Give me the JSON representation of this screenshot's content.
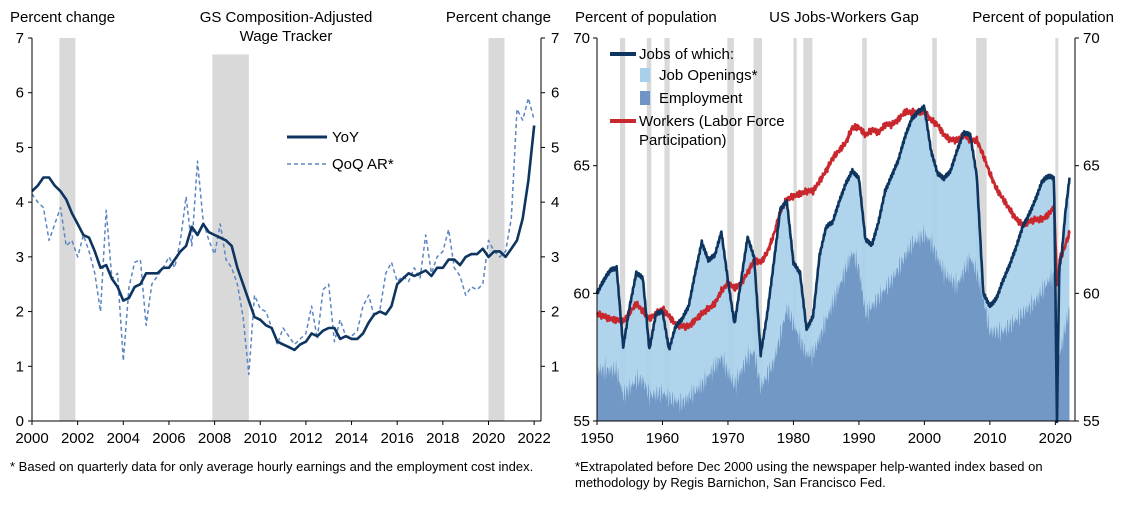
{
  "colors": {
    "navy": "#0d3560",
    "dashed": "#5b86c2",
    "light_blue": "#a8d0ea",
    "mid_blue": "#6f95c4",
    "red": "#c8272d",
    "recession": "#d9d9d9"
  },
  "chart_data": [
    {
      "type": "line",
      "title": "GS Composition-Adjusted Wage Tracker",
      "title_lines": [
        "GS Composition-Adjusted",
        "Wage Tracker"
      ],
      "ylabel_left": "Percent change",
      "ylabel_right": "Percent change",
      "xlim": [
        2000,
        2022.3
      ],
      "ylim": [
        0,
        7
      ],
      "x_ticks": [
        "2000",
        "2002",
        "2004",
        "2006",
        "2008",
        "2010",
        "2012",
        "2014",
        "2016",
        "2018",
        "2020",
        "2022"
      ],
      "y_ticks": [
        "0",
        "1",
        "2",
        "3",
        "4",
        "5",
        "6",
        "7"
      ],
      "y_ticks_right": [
        "1",
        "2",
        "3",
        "4",
        "5",
        "6",
        "7"
      ],
      "recessions": [
        [
          2001.2,
          2001.9
        ],
        [
          2007.9,
          2009.5
        ],
        [
          2020.0,
          2020.7
        ]
      ],
      "legend": [
        "YoY",
        "QoQ AR*"
      ],
      "series": [
        {
          "name": "YoY",
          "style": "solid",
          "x": [
            2000.0,
            2000.25,
            2000.5,
            2000.75,
            2001.0,
            2001.25,
            2001.5,
            2001.75,
            2002.0,
            2002.25,
            2002.5,
            2002.75,
            2003.0,
            2003.25,
            2003.5,
            2003.75,
            2004.0,
            2004.25,
            2004.5,
            2004.75,
            2005.0,
            2005.25,
            2005.5,
            2005.75,
            2006.0,
            2006.25,
            2006.5,
            2006.75,
            2007.0,
            2007.25,
            2007.5,
            2007.75,
            2008.0,
            2008.25,
            2008.5,
            2008.75,
            2009.0,
            2009.25,
            2009.5,
            2009.75,
            2010.0,
            2010.25,
            2010.5,
            2010.75,
            2011.0,
            2011.25,
            2011.5,
            2011.75,
            2012.0,
            2012.25,
            2012.5,
            2012.75,
            2013.0,
            2013.25,
            2013.5,
            2013.75,
            2014.0,
            2014.25,
            2014.5,
            2014.75,
            2015.0,
            2015.25,
            2015.5,
            2015.75,
            2016.0,
            2016.25,
            2016.5,
            2016.75,
            2017.0,
            2017.25,
            2017.5,
            2017.75,
            2018.0,
            2018.25,
            2018.5,
            2018.75,
            2019.0,
            2019.25,
            2019.5,
            2019.75,
            2020.0,
            2020.25,
            2020.5,
            2020.75,
            2021.0,
            2021.25,
            2021.5,
            2021.75,
            2022.0
          ],
          "values": [
            4.2,
            4.3,
            4.45,
            4.45,
            4.3,
            4.2,
            4.05,
            3.8,
            3.6,
            3.4,
            3.35,
            3.1,
            2.8,
            2.85,
            2.6,
            2.45,
            2.2,
            2.25,
            2.45,
            2.5,
            2.7,
            2.7,
            2.7,
            2.8,
            2.8,
            2.95,
            3.1,
            3.2,
            3.55,
            3.4,
            3.6,
            3.45,
            3.4,
            3.35,
            3.3,
            3.2,
            2.8,
            2.5,
            2.2,
            1.9,
            1.85,
            1.75,
            1.7,
            1.45,
            1.4,
            1.35,
            1.3,
            1.4,
            1.45,
            1.6,
            1.55,
            1.65,
            1.7,
            1.7,
            1.5,
            1.55,
            1.5,
            1.5,
            1.6,
            1.8,
            1.95,
            2.0,
            1.95,
            2.1,
            2.5,
            2.6,
            2.7,
            2.65,
            2.7,
            2.75,
            2.65,
            2.8,
            2.8,
            2.95,
            2.95,
            2.85,
            3.0,
            3.05,
            3.05,
            3.15,
            3.0,
            3.1,
            3.1,
            3.0,
            3.15,
            3.3,
            3.7,
            4.4,
            5.4
          ]
        },
        {
          "name": "QoQ AR*",
          "style": "dashed",
          "x": [
            2000.0,
            2000.25,
            2000.5,
            2000.75,
            2001.0,
            2001.25,
            2001.5,
            2001.75,
            2002.0,
            2002.25,
            2002.5,
            2002.75,
            2003.0,
            2003.25,
            2003.5,
            2003.75,
            2004.0,
            2004.25,
            2004.5,
            2004.75,
            2005.0,
            2005.25,
            2005.5,
            2005.75,
            2006.0,
            2006.25,
            2006.5,
            2006.75,
            2007.0,
            2007.25,
            2007.5,
            2007.75,
            2008.0,
            2008.25,
            2008.5,
            2008.75,
            2009.0,
            2009.25,
            2009.5,
            2009.75,
            2010.0,
            2010.25,
            2010.5,
            2010.75,
            2011.0,
            2011.25,
            2011.5,
            2011.75,
            2012.0,
            2012.25,
            2012.5,
            2012.75,
            2013.0,
            2013.25,
            2013.5,
            2013.75,
            2014.0,
            2014.25,
            2014.5,
            2014.75,
            2015.0,
            2015.25,
            2015.5,
            2015.75,
            2016.0,
            2016.25,
            2016.5,
            2016.75,
            2017.0,
            2017.25,
            2017.5,
            2017.75,
            2018.0,
            2018.25,
            2018.5,
            2018.75,
            2019.0,
            2019.25,
            2019.5,
            2019.75,
            2020.0,
            2020.25,
            2020.5,
            2020.75,
            2021.0,
            2021.25,
            2021.5,
            2021.75,
            2022.0
          ],
          "values": [
            4.15,
            4.0,
            3.9,
            3.3,
            3.6,
            3.9,
            3.2,
            3.3,
            3.0,
            3.4,
            3.1,
            2.7,
            2.0,
            3.85,
            2.6,
            2.7,
            1.1,
            2.45,
            2.9,
            2.95,
            1.75,
            2.5,
            2.65,
            2.8,
            3.0,
            2.8,
            3.3,
            4.1,
            3.2,
            4.75,
            3.65,
            3.3,
            3.05,
            3.6,
            2.95,
            2.8,
            2.5,
            1.9,
            0.85,
            2.3,
            2.05,
            2.0,
            1.7,
            1.4,
            1.7,
            1.55,
            1.4,
            1.5,
            1.6,
            2.1,
            1.5,
            2.4,
            2.5,
            1.45,
            1.85,
            1.55,
            1.55,
            1.65,
            2.1,
            2.3,
            1.9,
            2.05,
            2.7,
            2.9,
            2.55,
            2.65,
            2.55,
            2.8,
            2.6,
            3.4,
            2.7,
            3.0,
            3.1,
            3.5,
            2.8,
            2.65,
            2.3,
            2.45,
            2.4,
            2.5,
            3.3,
            3.1,
            3.0,
            3.1,
            3.7,
            5.7,
            5.5,
            5.9,
            5.5
          ]
        }
      ],
      "footnote": "* Based on quarterly data for only average hourly earnings and the employment cost index."
    },
    {
      "type": "area",
      "title": "US Jobs-Workers Gap",
      "ylabel_left": "Percent of population",
      "ylabel_right": "Percent of population",
      "xlim": [
        1950,
        2023
      ],
      "ylim": [
        55,
        70
      ],
      "x_ticks": [
        "1950",
        "1960",
        "1970",
        "1980",
        "1990",
        "2000",
        "2010",
        "2020"
      ],
      "y_ticks": [
        "55",
        "60",
        "65",
        "70"
      ],
      "recessions": [
        [
          1953.5,
          1954.3
        ],
        [
          1957.6,
          1958.3
        ],
        [
          1960.3,
          1961.1
        ],
        [
          1969.9,
          1970.9
        ],
        [
          1973.9,
          1975.2
        ],
        [
          1980.0,
          1980.5
        ],
        [
          1981.5,
          1982.9
        ],
        [
          1990.5,
          1991.2
        ],
        [
          2001.2,
          2001.9
        ],
        [
          2007.9,
          2009.5
        ],
        [
          2020.0,
          2020.3
        ]
      ],
      "legend": [
        "Jobs of which:",
        "Job Openings*",
        "Employment",
        "Workers (Labor Force Participation)"
      ],
      "legend_workers_lines": [
        "Workers (Labor Force",
        "Participation)"
      ],
      "series": [
        {
          "name": "Jobs of which:",
          "x": [
            1950,
            1951,
            1952,
            1953,
            1954,
            1955,
            1956,
            1957,
            1958,
            1959,
            1960,
            1961,
            1962,
            1963,
            1964,
            1965,
            1966,
            1967,
            1968,
            1969,
            1970,
            1971,
            1972,
            1973,
            1974,
            1975,
            1976,
            1977,
            1978,
            1979,
            1980,
            1981,
            1982,
            1983,
            1984,
            1985,
            1986,
            1987,
            1988,
            1989,
            1990,
            1991,
            1992,
            1993,
            1994,
            1995,
            1996,
            1997,
            1998,
            1999,
            2000,
            2001,
            2002,
            2003,
            2004,
            2005,
            2006,
            2007,
            2008,
            2009,
            2010,
            2011,
            2012,
            2013,
            2014,
            2015,
            2016,
            2017,
            2018,
            2019,
            2019.8,
            2020.25,
            2020.6,
            2021,
            2021.5,
            2022.2
          ],
          "values": [
            60.0,
            60.5,
            60.9,
            61.0,
            57.9,
            59.5,
            60.8,
            60.6,
            57.8,
            59.2,
            59.3,
            57.8,
            58.7,
            59.0,
            59.5,
            60.8,
            62.0,
            61.3,
            61.5,
            62.4,
            60.5,
            58.8,
            60.5,
            62.2,
            61.4,
            57.6,
            59.2,
            61.2,
            63.3,
            63.6,
            61.2,
            60.8,
            58.6,
            59.1,
            61.5,
            62.6,
            62.8,
            63.6,
            64.3,
            64.8,
            64.5,
            62.1,
            61.9,
            62.8,
            64.0,
            64.6,
            65.2,
            66.1,
            66.8,
            67.1,
            67.3,
            65.6,
            64.7,
            64.5,
            64.8,
            65.6,
            66.3,
            66.2,
            64.6,
            60.0,
            59.5,
            59.8,
            60.5,
            61.1,
            61.8,
            62.6,
            63.1,
            63.7,
            64.4,
            64.6,
            64.5,
            55.0,
            61.0,
            61.6,
            63.1,
            64.6
          ]
        },
        {
          "name": "Employment",
          "x": [
            1950,
            1952,
            1953,
            1954,
            1956,
            1957,
            1958,
            1960,
            1961,
            1963,
            1966,
            1969,
            1970,
            1971,
            1973,
            1974,
            1975,
            1977,
            1979,
            1980,
            1982,
            1983,
            1986,
            1989,
            1990,
            1991,
            1992,
            1995,
            1998,
            2000,
            2001,
            2003,
            2005,
            2007,
            2008,
            2009,
            2010,
            2012,
            2015,
            2017,
            2019,
            2019.8,
            2020.25,
            2020.6,
            2021,
            2021.5,
            2022.2
          ],
          "values": [
            57.0,
            57.0,
            57.0,
            56.0,
            56.6,
            56.6,
            56.0,
            56.1,
            55.9,
            55.7,
            56.4,
            57.5,
            56.9,
            56.4,
            57.5,
            57.7,
            56.3,
            57.3,
            59.4,
            58.8,
            57.6,
            57.6,
            59.6,
            61.6,
            61.0,
            59.2,
            59.5,
            60.5,
            61.9,
            62.3,
            62.0,
            60.8,
            60.3,
            61.4,
            60.8,
            59.8,
            58.5,
            58.5,
            59.2,
            59.7,
            60.5,
            60.7,
            55.0,
            57.6,
            58.0,
            58.6,
            59.5
          ]
        },
        {
          "name": "Workers (Labor Force Participation)",
          "x": [
            1950,
            1952,
            1954,
            1956,
            1958,
            1960,
            1962,
            1963,
            1964,
            1966,
            1968,
            1969,
            1970,
            1971,
            1972,
            1973,
            1974,
            1975,
            1976,
            1977,
            1978,
            1979,
            1980,
            1981,
            1982,
            1983,
            1984,
            1985,
            1986,
            1987,
            1988,
            1989,
            1990,
            1991,
            1992,
            1993,
            1994,
            1995,
            1996,
            1997,
            1998,
            1999,
            2000,
            2001,
            2002,
            2003,
            2004,
            2005,
            2006,
            2007,
            2008,
            2009,
            2010,
            2011,
            2012,
            2013,
            2014,
            2015,
            2016,
            2017,
            2018,
            2019,
            2019.8,
            2020.3,
            2020.7,
            2021,
            2022.2
          ],
          "values": [
            59.2,
            59.0,
            58.9,
            59.6,
            59.0,
            59.4,
            58.8,
            58.7,
            58.7,
            59.2,
            59.6,
            60.1,
            60.4,
            60.2,
            60.4,
            60.8,
            61.3,
            61.2,
            61.6,
            62.3,
            63.2,
            63.7,
            63.8,
            63.9,
            64.0,
            64.0,
            64.4,
            64.8,
            65.3,
            65.6,
            65.9,
            66.5,
            66.5,
            66.2,
            66.4,
            66.3,
            66.6,
            66.6,
            66.8,
            67.1,
            67.1,
            67.1,
            67.1,
            66.8,
            66.6,
            66.2,
            66.0,
            66.0,
            66.2,
            66.0,
            66.0,
            65.4,
            64.7,
            64.1,
            63.7,
            63.3,
            62.9,
            62.7,
            62.8,
            62.9,
            62.9,
            63.1,
            63.4,
            60.2,
            61.4,
            61.5,
            62.4
          ]
        }
      ],
      "footnote": "*Extrapolated before Dec 2000 using the newspaper help-wanted index based on methodology by Regis Barnichon, San Francisco Fed."
    }
  ]
}
